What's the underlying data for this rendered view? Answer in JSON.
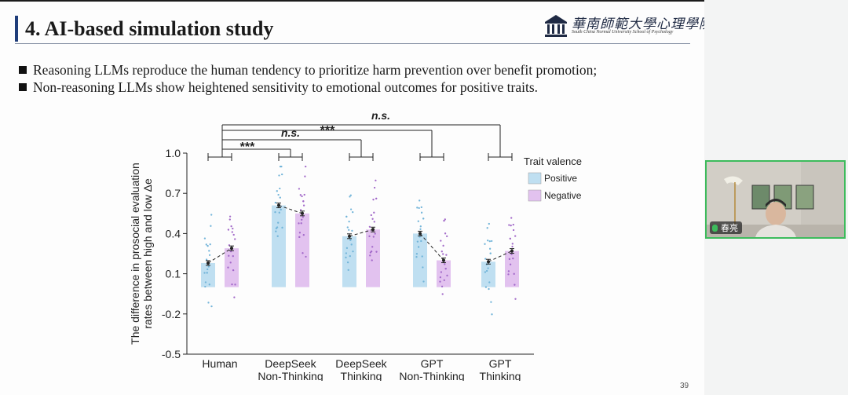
{
  "slide": {
    "title": "4. AI-based simulation study",
    "logo": {
      "name": "華南師範大學心理學院",
      "subtitle": "South China Normal University School of Psychology"
    },
    "bullets": [
      "Reasoning LLMs reproduce the human tendency to prioritize harm prevention over benefit promotion;",
      "Non-reasoning LLMs show heightened sensitivity to emotional outcomes for positive traits."
    ],
    "page_number": "39"
  },
  "chart_data": {
    "type": "bar",
    "ylabel_line1": "The difference in prosocial evaluation",
    "ylabel_line2": "rates between high and low Δe",
    "categories": [
      "Human",
      "DeepSeek Non-Thinking",
      "DeepSeek Thinking",
      "GPT Non-Thinking",
      "GPT Thinking"
    ],
    "category_lines": [
      [
        "Human"
      ],
      [
        "DeepSeek",
        "Non-Thinking"
      ],
      [
        "DeepSeek",
        "Thinking"
      ],
      [
        "GPT",
        "Non-Thinking"
      ],
      [
        "GPT",
        "Thinking"
      ]
    ],
    "ylim": [
      -0.5,
      1.0
    ],
    "yticks": [
      "1.0",
      "0.7",
      "0.4",
      "0.1",
      "-0.2",
      "-0.5"
    ],
    "ytick_values": [
      1.0,
      0.7,
      0.4,
      0.1,
      -0.2,
      -0.5
    ],
    "legend_title": "Trait valence",
    "series": [
      {
        "name": "Positive",
        "color": "#bfdff1",
        "dot_color": "#6fb3d8",
        "values": [
          0.18,
          0.61,
          0.38,
          0.4,
          0.19
        ]
      },
      {
        "name": "Negative",
        "color": "#e2c2ef",
        "dot_color": "#a066c8",
        "values": [
          0.29,
          0.55,
          0.43,
          0.2,
          0.27
        ]
      }
    ],
    "significance": [
      {
        "label": "***",
        "from": "Human",
        "to": "DeepSeek Non-Thinking"
      },
      {
        "label": "n.s.",
        "from": "Human",
        "to": "DeepSeek Thinking"
      },
      {
        "label": "***",
        "from": "Human",
        "to": "GPT Non-Thinking"
      },
      {
        "label": "n.s.",
        "from": "Human",
        "to": "GPT Thinking"
      }
    ],
    "grid": false
  },
  "video": {
    "participant_name": "春亮"
  },
  "colors": {
    "title_accent": "#1f3d7a",
    "video_border": "#3dbb5c"
  }
}
